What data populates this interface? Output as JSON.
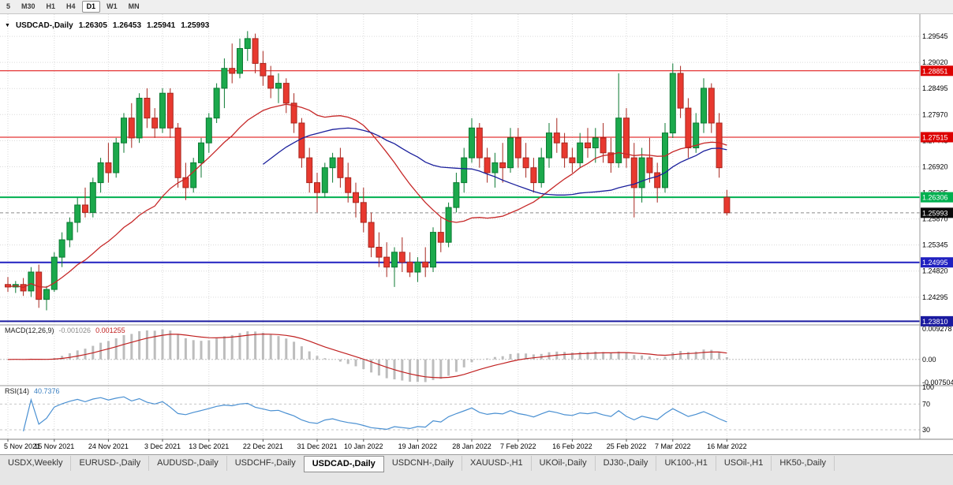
{
  "toolbar": {
    "timeframes": [
      {
        "label": "5",
        "active": false
      },
      {
        "label": "M30",
        "active": false
      },
      {
        "label": "H1",
        "active": false
      },
      {
        "label": "H4",
        "active": false
      },
      {
        "label": "D1",
        "active": true
      },
      {
        "label": "W1",
        "active": false
      },
      {
        "label": "MN",
        "active": false
      }
    ]
  },
  "chart_header": {
    "symbol": "USDCAD-,Daily",
    "open": "1.26305",
    "high": "1.26453",
    "low": "1.25941",
    "close": "1.25993"
  },
  "chart_data": {
    "type": "candlestick",
    "title": "USDCAD-,Daily",
    "price_axis": {
      "min": 1.238,
      "max": 1.298,
      "ticks": [
        {
          "v": 1.29545,
          "label": "1.29545"
        },
        {
          "v": 1.2902,
          "label": "1.29020"
        },
        {
          "v": 1.28495,
          "label": "1.28495"
        },
        {
          "v": 1.2797,
          "label": "1.27970"
        },
        {
          "v": 1.27445,
          "label": "1.27445"
        },
        {
          "v": 1.2692,
          "label": "1.26920"
        },
        {
          "v": 1.26395,
          "label": "1.26395"
        },
        {
          "v": 1.2587,
          "label": "1.25870"
        },
        {
          "v": 1.25345,
          "label": "1.25345"
        },
        {
          "v": 1.2482,
          "label": "1.24820"
        },
        {
          "v": 1.24295,
          "label": "1.24295"
        }
      ]
    },
    "date_ticks": [
      {
        "label": "5 Nov 2021",
        "i": 0
      },
      {
        "label": "15 Nov 2021",
        "i": 6
      },
      {
        "label": "24 Nov 2021",
        "i": 13
      },
      {
        "label": "3 Dec 2021",
        "i": 20
      },
      {
        "label": "13 Dec 2021",
        "i": 26
      },
      {
        "label": "22 Dec 2021",
        "i": 33
      },
      {
        "label": "31 Dec 2021",
        "i": 40
      },
      {
        "label": "10 Jan 2022",
        "i": 46
      },
      {
        "label": "19 Jan 2022",
        "i": 53
      },
      {
        "label": "28 Jan 2022",
        "i": 60
      },
      {
        "label": "7 Feb 2022",
        "i": 66
      },
      {
        "label": "16 Feb 2022",
        "i": 73
      },
      {
        "label": "25 Feb 2022",
        "i": 80
      },
      {
        "label": "7 Mar 2022",
        "i": 86
      },
      {
        "label": "16 Mar 2022",
        "i": 93
      }
    ],
    "candles": [
      [
        1.2455,
        1.247,
        1.244,
        1.245
      ],
      [
        1.245,
        1.2462,
        1.2438,
        1.2455
      ],
      [
        1.2455,
        1.2468,
        1.2432,
        1.2442
      ],
      [
        1.2442,
        1.249,
        1.243,
        1.248
      ],
      [
        1.248,
        1.2495,
        1.2408,
        1.2425
      ],
      [
        1.2425,
        1.2452,
        1.2403,
        1.2445
      ],
      [
        1.2445,
        1.252,
        1.244,
        1.251
      ],
      [
        1.251,
        1.256,
        1.249,
        1.2545
      ],
      [
        1.2545,
        1.259,
        1.253,
        1.258
      ],
      [
        1.258,
        1.263,
        1.256,
        1.2615
      ],
      [
        1.2615,
        1.265,
        1.259,
        1.26
      ],
      [
        1.26,
        1.267,
        1.259,
        1.266
      ],
      [
        1.266,
        1.271,
        1.264,
        1.27
      ],
      [
        1.27,
        1.274,
        1.266,
        1.268
      ],
      [
        1.268,
        1.275,
        1.267,
        1.274
      ],
      [
        1.274,
        1.28,
        1.272,
        1.279
      ],
      [
        1.279,
        1.282,
        1.273,
        1.275
      ],
      [
        1.275,
        1.284,
        1.274,
        1.283
      ],
      [
        1.283,
        1.285,
        1.277,
        1.279
      ],
      [
        1.279,
        1.281,
        1.275,
        1.277
      ],
      [
        1.277,
        1.285,
        1.276,
        1.284
      ],
      [
        1.284,
        1.285,
        1.275,
        1.277
      ],
      [
        1.277,
        1.278,
        1.265,
        1.267
      ],
      [
        1.267,
        1.27,
        1.2625,
        1.265
      ],
      [
        1.265,
        1.271,
        1.264,
        1.27
      ],
      [
        1.27,
        1.275,
        1.267,
        1.274
      ],
      [
        1.274,
        1.28,
        1.272,
        1.279
      ],
      [
        1.279,
        1.286,
        1.278,
        1.285
      ],
      [
        1.285,
        1.291,
        1.281,
        1.289
      ],
      [
        1.289,
        1.294,
        1.286,
        1.288
      ],
      [
        1.288,
        1.295,
        1.287,
        1.293
      ],
      [
        1.293,
        1.2965,
        1.2905,
        1.295
      ],
      [
        1.295,
        1.296,
        1.288,
        1.29
      ],
      [
        1.29,
        1.2925,
        1.2855,
        1.2875
      ],
      [
        1.2875,
        1.2895,
        1.283,
        1.285
      ],
      [
        1.285,
        1.288,
        1.282,
        1.286
      ],
      [
        1.286,
        1.287,
        1.28,
        1.282
      ],
      [
        1.282,
        1.284,
        1.276,
        1.278
      ],
      [
        1.278,
        1.279,
        1.269,
        1.271
      ],
      [
        1.271,
        1.273,
        1.264,
        1.266
      ],
      [
        1.266,
        1.268,
        1.26,
        1.264
      ],
      [
        1.264,
        1.27,
        1.263,
        1.269
      ],
      [
        1.269,
        1.272,
        1.266,
        1.271
      ],
      [
        1.271,
        1.273,
        1.265,
        1.267
      ],
      [
        1.267,
        1.27,
        1.262,
        1.264
      ],
      [
        1.264,
        1.266,
        1.259,
        1.262
      ],
      [
        1.262,
        1.265,
        1.256,
        1.258
      ],
      [
        1.258,
        1.26,
        1.251,
        1.253
      ],
      [
        1.253,
        1.256,
        1.249,
        1.251
      ],
      [
        1.251,
        1.254,
        1.247,
        1.249
      ],
      [
        1.249,
        1.253,
        1.245,
        1.252
      ],
      [
        1.252,
        1.255,
        1.248,
        1.25
      ],
      [
        1.25,
        1.252,
        1.247,
        1.248
      ],
      [
        1.248,
        1.251,
        1.246,
        1.25
      ],
      [
        1.25,
        1.253,
        1.247,
        1.249
      ],
      [
        1.249,
        1.257,
        1.248,
        1.256
      ],
      [
        1.256,
        1.259,
        1.252,
        1.254
      ],
      [
        1.254,
        1.262,
        1.253,
        1.261
      ],
      [
        1.261,
        1.268,
        1.26,
        1.266
      ],
      [
        1.266,
        1.273,
        1.264,
        1.271
      ],
      [
        1.271,
        1.279,
        1.27,
        1.277
      ],
      [
        1.277,
        1.278,
        1.269,
        1.271
      ],
      [
        1.271,
        1.273,
        1.266,
        1.268
      ],
      [
        1.268,
        1.272,
        1.265,
        1.27
      ],
      [
        1.27,
        1.274,
        1.266,
        1.269
      ],
      [
        1.269,
        1.277,
        1.268,
        1.275
      ],
      [
        1.275,
        1.277,
        1.269,
        1.271
      ],
      [
        1.271,
        1.274,
        1.267,
        1.269
      ],
      [
        1.269,
        1.271,
        1.264,
        1.266
      ],
      [
        1.266,
        1.273,
        1.265,
        1.271
      ],
      [
        1.271,
        1.278,
        1.269,
        1.276
      ],
      [
        1.276,
        1.279,
        1.272,
        1.274
      ],
      [
        1.274,
        1.276,
        1.269,
        1.271
      ],
      [
        1.271,
        1.273,
        1.268,
        1.27
      ],
      [
        1.27,
        1.276,
        1.269,
        1.274
      ],
      [
        1.274,
        1.277,
        1.271,
        1.273
      ],
      [
        1.273,
        1.277,
        1.27,
        1.275
      ],
      [
        1.275,
        1.278,
        1.27,
        1.272
      ],
      [
        1.272,
        1.275,
        1.268,
        1.27
      ],
      [
        1.27,
        1.288,
        1.269,
        1.279
      ],
      [
        1.279,
        1.281,
        1.269,
        1.271
      ],
      [
        1.271,
        1.274,
        1.259,
        1.265
      ],
      [
        1.265,
        1.273,
        1.262,
        1.271
      ],
      [
        1.271,
        1.275,
        1.266,
        1.268
      ],
      [
        1.268,
        1.27,
        1.262,
        1.265
      ],
      [
        1.265,
        1.278,
        1.264,
        1.276
      ],
      [
        1.276,
        1.29,
        1.275,
        1.288
      ],
      [
        1.288,
        1.2895,
        1.279,
        1.281
      ],
      [
        1.281,
        1.283,
        1.271,
        1.273
      ],
      [
        1.273,
        1.28,
        1.272,
        1.278
      ],
      [
        1.278,
        1.287,
        1.276,
        1.285
      ],
      [
        1.285,
        1.286,
        1.276,
        1.278
      ],
      [
        1.278,
        1.28,
        1.267,
        1.269
      ],
      [
        1.26305,
        1.26453,
        1.25941,
        1.25993
      ]
    ],
    "moving_averages": [
      {
        "name": "ma-red",
        "period": 20,
        "color": "#c62828"
      },
      {
        "name": "ma-blue",
        "period": 34,
        "color": "#1a1f9c"
      }
    ],
    "levels": [
      {
        "price": 1.28851,
        "label": "1.28851",
        "color": "#dd0000",
        "width": 1
      },
      {
        "price": 1.27515,
        "label": "1.27515",
        "color": "#dd0000",
        "width": 1
      },
      {
        "price": 1.26306,
        "label": "1.26306",
        "color": "#00b050",
        "width": 2
      },
      {
        "price": 1.24995,
        "label": "1.24995",
        "color": "#2020c0",
        "width": 2
      },
      {
        "price": 1.2381,
        "label": "1.23810",
        "color": "#1a1aa0",
        "width": 2
      }
    ],
    "current_price": {
      "value": 1.25993,
      "label": "1.25993",
      "badge_color": "#0a0a0a"
    },
    "indicators": {
      "macd": {
        "name": "MACD(12,26,9)",
        "fast": 12,
        "slow": 26,
        "signal": 9,
        "value_main": "-0.001026",
        "value_signal": "0.001255",
        "axis": [
          {
            "v": 0.009278,
            "label": "0.009278"
          },
          {
            "v": 0,
            "label": "0.00"
          },
          {
            "v": -0.007504,
            "label": "-0.007504"
          }
        ],
        "histogram_color": "#bdbdbd",
        "signal_color": "#c02020"
      },
      "rsi": {
        "name": "RSI(14)",
        "period": 14,
        "value": "40.7376",
        "levels": [
          70,
          30
        ],
        "axis": [
          {
            "v": 100,
            "label": "100"
          },
          {
            "v": 70,
            "label": "70"
          },
          {
            "v": 30,
            "label": "30"
          }
        ],
        "color": "#4a90d2"
      }
    },
    "colors": {
      "bull": "#1ba94c",
      "bull_border": "#0c7a33",
      "bear": "#e8392f",
      "bear_border": "#a8271f",
      "grid": "#dadada"
    }
  },
  "tabs": [
    {
      "label": "USDX,Weekly",
      "active": false
    },
    {
      "label": "EURUSD-,Daily",
      "active": false
    },
    {
      "label": "AUDUSD-,Daily",
      "active": false
    },
    {
      "label": "USDCHF-,Daily",
      "active": false
    },
    {
      "label": "USDCAD-,Daily",
      "active": true
    },
    {
      "label": "USDCNH-,Daily",
      "active": false
    },
    {
      "label": "XAUUSD-,H1",
      "active": false
    },
    {
      "label": "UKOil-,Daily",
      "active": false
    },
    {
      "label": "DJ30-,Daily",
      "active": false
    },
    {
      "label": "UK100-,H1",
      "active": false
    },
    {
      "label": "USOil-,H1",
      "active": false
    },
    {
      "label": "HK50-,Daily",
      "active": false
    }
  ]
}
